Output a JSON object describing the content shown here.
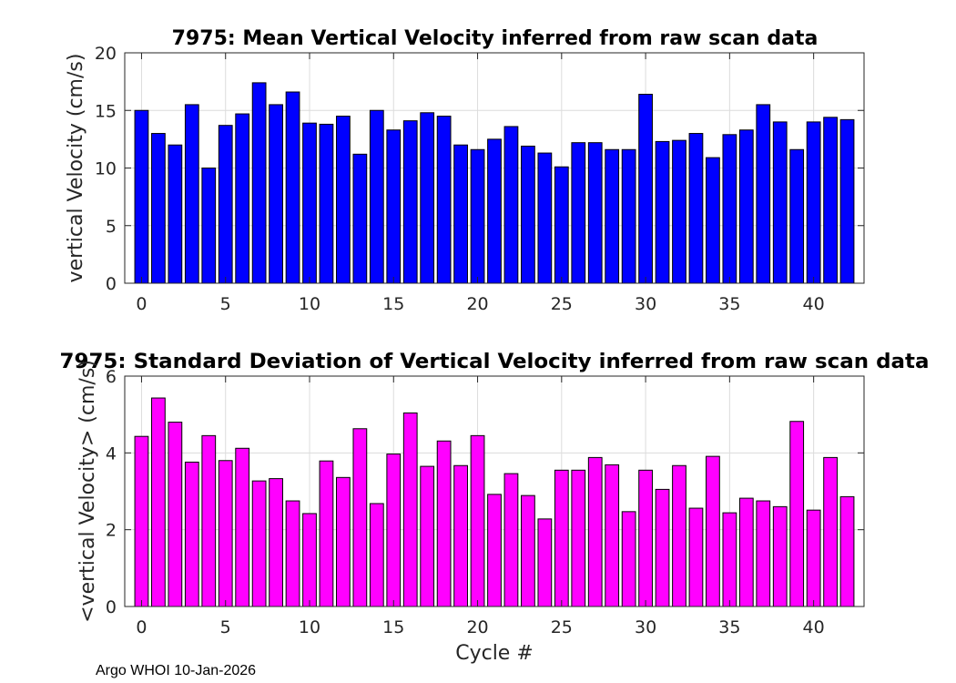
{
  "chart_data": [
    {
      "type": "bar",
      "title": "7975: Mean Vertical Velocity inferred from raw scan data",
      "xlabel": "",
      "ylabel": "vertical Velocity (cm/s)",
      "xlim": [
        -1,
        43
      ],
      "ylim": [
        0,
        20
      ],
      "xticks": [
        0,
        5,
        10,
        15,
        20,
        25,
        30,
        35,
        40
      ],
      "yticks": [
        0,
        5,
        10,
        15,
        20
      ],
      "grid": true,
      "color": "#0000ff",
      "x": [
        0,
        1,
        2,
        3,
        4,
        5,
        6,
        7,
        8,
        9,
        10,
        11,
        12,
        13,
        14,
        15,
        16,
        17,
        18,
        19,
        20,
        21,
        22,
        23,
        24,
        25,
        26,
        27,
        28,
        29,
        30,
        31,
        32,
        33,
        34,
        35,
        36,
        37,
        38,
        39,
        40,
        41,
        42
      ],
      "values": [
        15.0,
        13.0,
        12.0,
        15.5,
        10.0,
        13.7,
        14.7,
        17.4,
        15.5,
        16.6,
        13.9,
        13.8,
        14.5,
        11.2,
        15.0,
        13.3,
        14.1,
        14.8,
        14.5,
        12.0,
        11.6,
        12.5,
        13.6,
        11.9,
        11.3,
        10.1,
        12.2,
        12.2,
        11.6,
        11.6,
        16.4,
        12.3,
        12.4,
        13.0,
        10.9,
        12.9,
        13.3,
        15.5,
        14.0,
        11.6,
        14.0,
        14.4,
        14.2
      ]
    },
    {
      "type": "bar",
      "title": "7975: Standard Deviation of Vertical Velocity inferred from raw scan data",
      "xlabel": "Cycle #",
      "ylabel": "<vertical Velocity> (cm/s)",
      "xlim": [
        -1,
        43
      ],
      "ylim": [
        0,
        6
      ],
      "xticks": [
        0,
        5,
        10,
        15,
        20,
        25,
        30,
        35,
        40
      ],
      "yticks": [
        0,
        2,
        4,
        6
      ],
      "grid": true,
      "color": "#ff00ff",
      "x": [
        0,
        1,
        2,
        3,
        4,
        5,
        6,
        7,
        8,
        9,
        10,
        11,
        12,
        13,
        14,
        15,
        16,
        17,
        18,
        19,
        20,
        21,
        22,
        23,
        24,
        25,
        26,
        27,
        28,
        29,
        30,
        31,
        32,
        33,
        34,
        35,
        36,
        37,
        38,
        39,
        40,
        41,
        42
      ],
      "values": [
        4.43,
        5.43,
        4.8,
        3.76,
        4.45,
        3.8,
        4.12,
        3.27,
        3.33,
        2.75,
        2.42,
        3.79,
        3.36,
        4.63,
        2.68,
        3.97,
        5.04,
        3.65,
        4.31,
        3.67,
        4.45,
        2.92,
        3.46,
        2.89,
        2.28,
        3.55,
        3.55,
        3.88,
        3.69,
        2.47,
        3.55,
        3.05,
        3.67,
        2.56,
        3.91,
        2.44,
        2.82,
        2.75,
        2.6,
        4.82,
        2.51,
        3.88,
        2.86
      ]
    }
  ],
  "footer": "Argo WHOI 10-Jan-2026"
}
